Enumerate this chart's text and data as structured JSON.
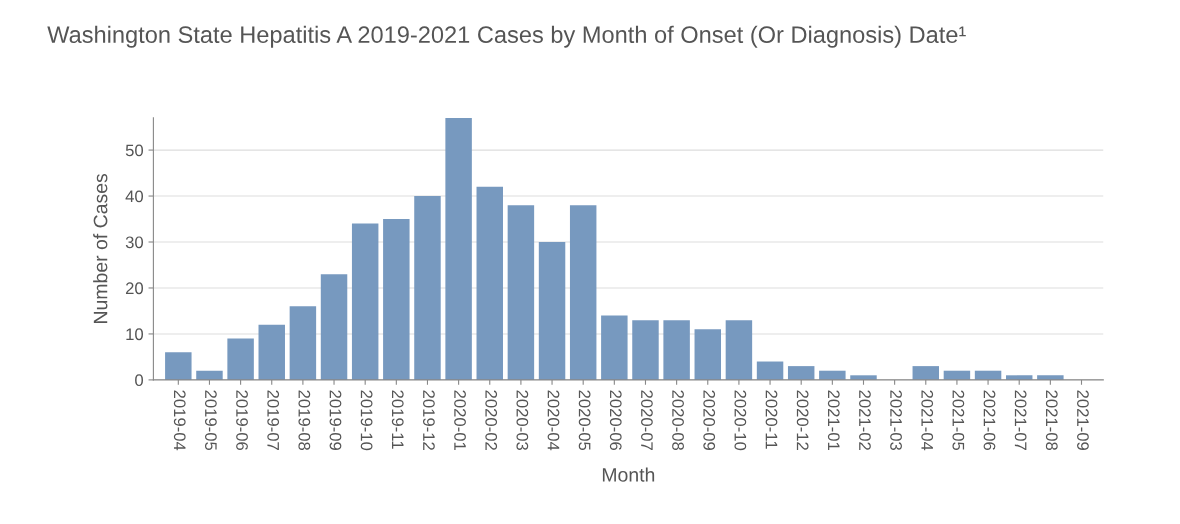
{
  "chart_data": {
    "type": "bar",
    "title": "Washington State Hepatitis A 2019-2021 Cases by Month of Onset (Or Diagnosis) Date¹",
    "xlabel": "Month",
    "ylabel": "Number of Cases",
    "categories": [
      "2019-04",
      "2019-05",
      "2019-06",
      "2019-07",
      "2019-08",
      "2019-09",
      "2019-10",
      "2019-11",
      "2019-12",
      "2020-01",
      "2020-02",
      "2020-03",
      "2020-04",
      "2020-05",
      "2020-06",
      "2020-07",
      "2020-08",
      "2020-09",
      "2020-10",
      "2020-11",
      "2020-12",
      "2021-01",
      "2021-02",
      "2021-03",
      "2021-04",
      "2021-05",
      "2021-06",
      "2021-07",
      "2021-08",
      "2021-09"
    ],
    "values": [
      6,
      2,
      9,
      12,
      16,
      23,
      34,
      35,
      40,
      57,
      42,
      38,
      30,
      38,
      14,
      13,
      13,
      11,
      13,
      4,
      3,
      2,
      1,
      0,
      3,
      2,
      2,
      1,
      1,
      0
    ],
    "color": "#7799bf",
    "ylim": [
      0,
      57
    ],
    "yticks": [
      0,
      10,
      20,
      30,
      40,
      50
    ],
    "grid": "y"
  }
}
